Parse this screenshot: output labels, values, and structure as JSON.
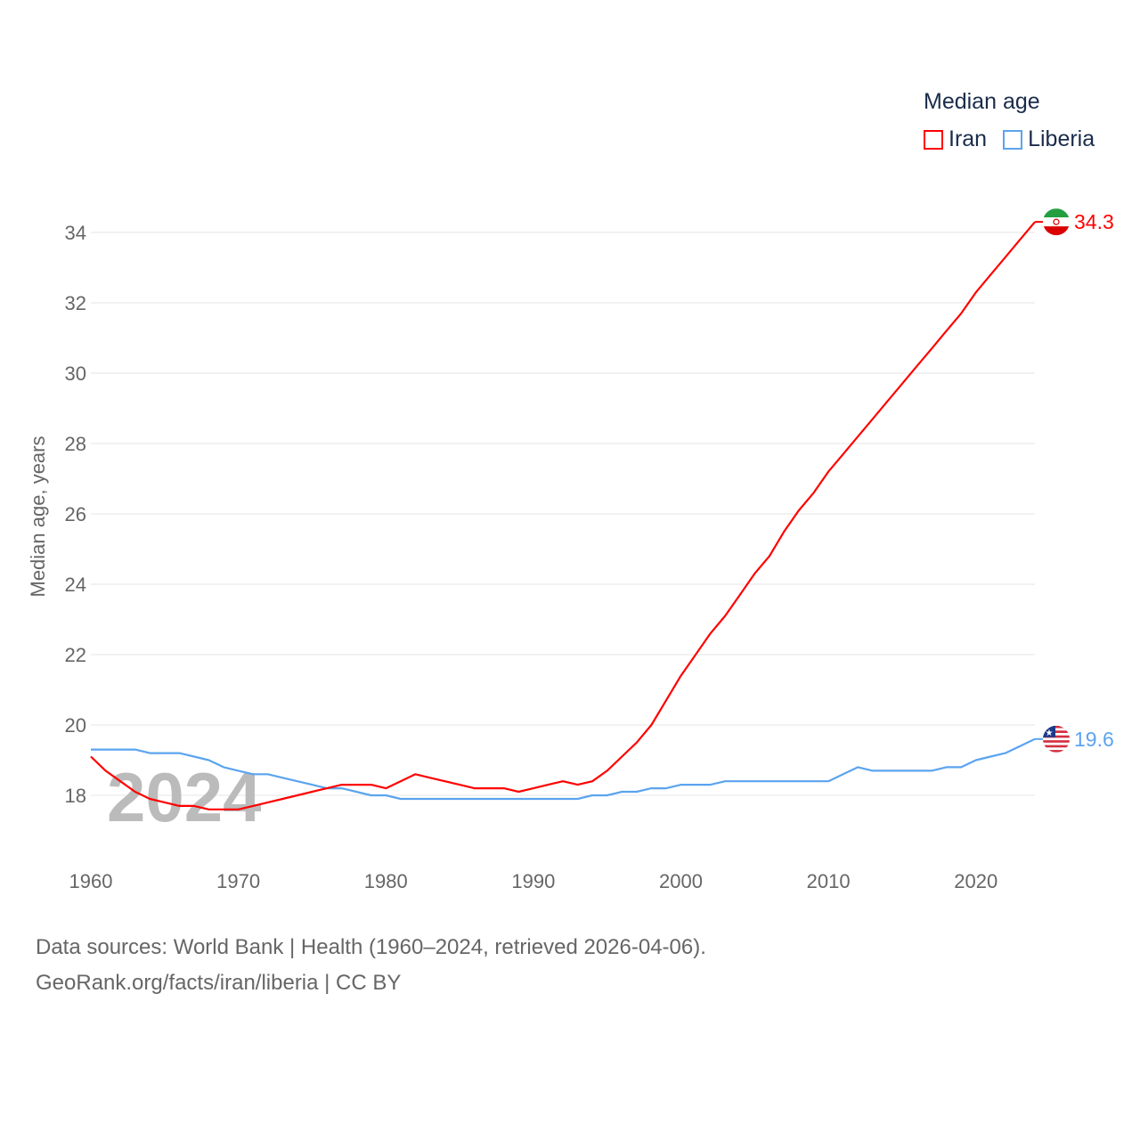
{
  "chart_data": {
    "type": "line",
    "title": "Median age",
    "xlabel": "",
    "ylabel": "Median age, years",
    "year_watermark": "2024",
    "xlim": [
      1960,
      2024
    ],
    "ylim": [
      16.5,
      34.5
    ],
    "x_ticks": [
      1960,
      1970,
      1980,
      1990,
      2000,
      2010,
      2020
    ],
    "y_ticks": [
      18,
      20,
      22,
      24,
      26,
      28,
      30,
      32,
      34
    ],
    "grid": true,
    "legend_position": "top-right",
    "x": [
      1960,
      1961,
      1962,
      1963,
      1964,
      1965,
      1966,
      1967,
      1968,
      1969,
      1970,
      1971,
      1972,
      1973,
      1974,
      1975,
      1976,
      1977,
      1978,
      1979,
      1980,
      1981,
      1982,
      1983,
      1984,
      1985,
      1986,
      1987,
      1988,
      1989,
      1990,
      1991,
      1992,
      1993,
      1994,
      1995,
      1996,
      1997,
      1998,
      1999,
      2000,
      2001,
      2002,
      2003,
      2004,
      2005,
      2006,
      2007,
      2008,
      2009,
      2010,
      2011,
      2012,
      2013,
      2014,
      2015,
      2016,
      2017,
      2018,
      2019,
      2020,
      2021,
      2022,
      2023,
      2024
    ],
    "series": [
      {
        "name": "Iran",
        "color": "#ff0000",
        "end_label": "34.3",
        "icon": "iran-flag-icon",
        "values": [
          19.1,
          18.7,
          18.4,
          18.1,
          17.9,
          17.8,
          17.7,
          17.7,
          17.6,
          17.6,
          17.6,
          17.7,
          17.8,
          17.9,
          18.0,
          18.1,
          18.2,
          18.3,
          18.3,
          18.3,
          18.2,
          18.4,
          18.6,
          18.5,
          18.4,
          18.3,
          18.2,
          18.2,
          18.2,
          18.1,
          18.2,
          18.3,
          18.4,
          18.3,
          18.4,
          18.7,
          19.1,
          19.5,
          20.0,
          20.7,
          21.4,
          22.0,
          22.6,
          23.1,
          23.7,
          24.3,
          24.8,
          25.5,
          26.1,
          26.6,
          27.2,
          27.7,
          28.2,
          28.7,
          29.2,
          29.7,
          30.2,
          30.7,
          31.2,
          31.7,
          32.3,
          32.8,
          33.3,
          33.8,
          34.3
        ]
      },
      {
        "name": "Liberia",
        "color": "#5ba4ef",
        "end_label": "19.6",
        "icon": "liberia-flag-icon",
        "values": [
          19.3,
          19.3,
          19.3,
          19.3,
          19.2,
          19.2,
          19.2,
          19.1,
          19.0,
          18.8,
          18.7,
          18.6,
          18.6,
          18.5,
          18.4,
          18.3,
          18.2,
          18.2,
          18.1,
          18.0,
          18.0,
          17.9,
          17.9,
          17.9,
          17.9,
          17.9,
          17.9,
          17.9,
          17.9,
          17.9,
          17.9,
          17.9,
          17.9,
          17.9,
          18.0,
          18.0,
          18.1,
          18.1,
          18.2,
          18.2,
          18.3,
          18.3,
          18.3,
          18.4,
          18.4,
          18.4,
          18.4,
          18.4,
          18.4,
          18.4,
          18.4,
          18.6,
          18.8,
          18.7,
          18.7,
          18.7,
          18.7,
          18.7,
          18.8,
          18.8,
          19.0,
          19.1,
          19.2,
          19.4,
          19.6
        ]
      }
    ]
  },
  "footer": {
    "line1": "Data sources: World Bank | Health (1960–2024, retrieved 2026-04-06).",
    "line2": "GeoRank.org/facts/iran/liberia | CC BY"
  }
}
